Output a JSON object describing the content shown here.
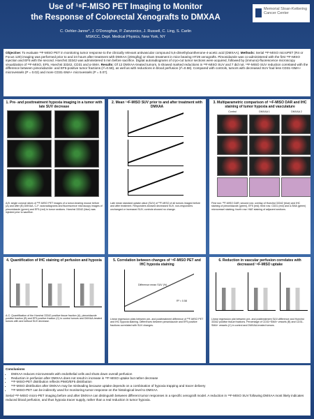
{
  "header": {
    "title_line1": "Use of ¹⁸F-MISO PET Imaging to Monitor",
    "title_line2": "the Response of Colorectal Xenografts to DMXAA",
    "authors": "C. Oehler-Janne*, J. O'Donoghue, P. Zanzonico, J. Russell, C. Ling, S. Carlin",
    "affiliation": "MSKCC, Dept. Medical Physics, New York, NY",
    "logo_line1": "Memorial Sloan-Kettering",
    "logo_line2": "Cancer Center"
  },
  "objective": {
    "label1": "Objective:",
    "text1": "To evaluate ¹⁸F-MISO PET in monitoring tumor response to the clinically relevant antivascular compound 5,6-dimethylxanthenone-4-acetic acid (DMXAA).",
    "label2": "Methods:",
    "text2": "Serial ¹⁸F-MISO microPET (R4 or Focus 120) imaging was performed prior to and 24 hours after treatment with DMXAA (20mg/kg) or sham treatment in mice bearing HT29 xenografts. Pimonidazole was co-administered with the first ¹⁸F-MISO injection and EF5 with the second. Hoechst 33342 was administered 5 min before sacrifice. Digital autoradiograms of cryo-cut tumor sections were acquired, followed by (immuno)-fluorescence microscopy visualization of ¹⁸F-MISO, EF5, Hoechst 33342, CD31 and α-SMA.",
    "label3": "Results:",
    "text3": "Of 12 DMXAA-treated tumors, 5 showed marked reductions in ¹⁸F-MISO SUV and 7 did not. ¹⁸F-MISO SUV reduction correlated with the difference between pimonidazole- and EF5-positive tumor fractions (r²=0.58), as well as with reductions in blood perfusion (r²=0.58). Compared with controls, tumors with decreased SUV had less CD31+SMA+ microvessels (P = 0.02) and more CD31-SMA+ microvessels (P = 0.07)."
  },
  "panels": [
    {
      "title": "1. Pre- and posttreatment hypoxia imaging in a tumor with late SUV decrease",
      "caption": "A,B: single coronal slices of ¹⁸F-MISO PET images of a tumor-bearing mouse before (A) and after (B) DMXAA. C-F: autoradiograms and fluorescence microscopy images of pimonidazole (green) and EF5 (red) in tumor sections. Hoechst 33342 (blue) was injected prior to sacrifice."
    },
    {
      "title": "2. Mean ¹⁸F-MISO SUV prior to and after treatment with DMXAA",
      "caption": "Late mean standard uptake value (SUV) of ¹⁸F-MISO of all tumors imaged before and after treatment. Responders showed decreased SUV, non-responders unchanged or increased SUV; controls showed no change."
    },
    {
      "title": "3. Multiparametric comparison of ¹⁸F-MISO DAR and IHC staining of tumor hypoxia and vasculature",
      "labels": [
        "Control",
        "DMXAA 1",
        "DMXAA 2"
      ],
      "caption": "First row: ¹⁸F-MISO DAR; second row: overlay of Hoechst 33342 (blue) and IHC staining of pimonidazole (green), EF5 (red); third row: CD31 (red) and α-SMA (green) microvessel staining; fourth row: H&E staining of adjacent sections."
    },
    {
      "title": "4. Quantification of IHC staining of perfusion and hypoxia",
      "caption": "A-C: Quantification of the Hoechst 33342 positive tissue fraction (A), pimonidazole positive fraction (B) and EF5 positive fraction (C) in control tumors and DMXAA-treated tumors with and without SUV decrease."
    },
    {
      "title": "5. Correlation between changes of ¹⁸F-MISO PET and IHC hypoxia staining",
      "axis_x": "Difference mean SUV (%)",
      "r2": "R² = 0.58",
      "caption": "Linear regression plots between pre- and posttreatment difference of ¹⁸F-MISO PET and IHC hypoxia staining. Differences between pimonidazole and EF5 positive fractions correlated with SUV changes."
    },
    {
      "title": "6. Reduction in vascular perfusion correlates with decreased ¹⁸F-MISO uptake",
      "caption": "Linear regression plot between pre- and posttreatment SUV-difference and Hoechst 33342 positive tissue fractions. Percentage of CD31+SMA+ vessels (B) and CD31-SMA+ vessels (C) in control and DMXAA-treated tumors."
    }
  ],
  "conclusions": {
    "title": "Conclusions",
    "bullets": [
      "DMXAA reduces microvessels with endothelial cells and shuts down overall perfusion",
      "Reduction in perfusion after DMXAA does not result in increase in ¹⁸F-MISO uptake but rather decrease",
      "¹⁸F-MISO-PET distribution reflects PIMO/EF5 distribution",
      "¹⁸F-MISO distribution after DMXAA may be misleading because uptake depends on a combination of hypoxia trapping and tracer delivery",
      "¹⁸F-MISO-PET can be indirectly used for monitoring tumor response on the histological level to DMXAA"
    ],
    "summary": "Serial ¹⁸F-MISO micro-PET imaging before and after DMXAA can distinguish between different tumor responses in a specific xenograft model. A reduction in ¹⁸F-MISO SUV following DMXAA most likely indicates reduced blood perfusion, and thus hypoxia tracer supply, rather than a real reduction in tumor hypoxia."
  }
}
